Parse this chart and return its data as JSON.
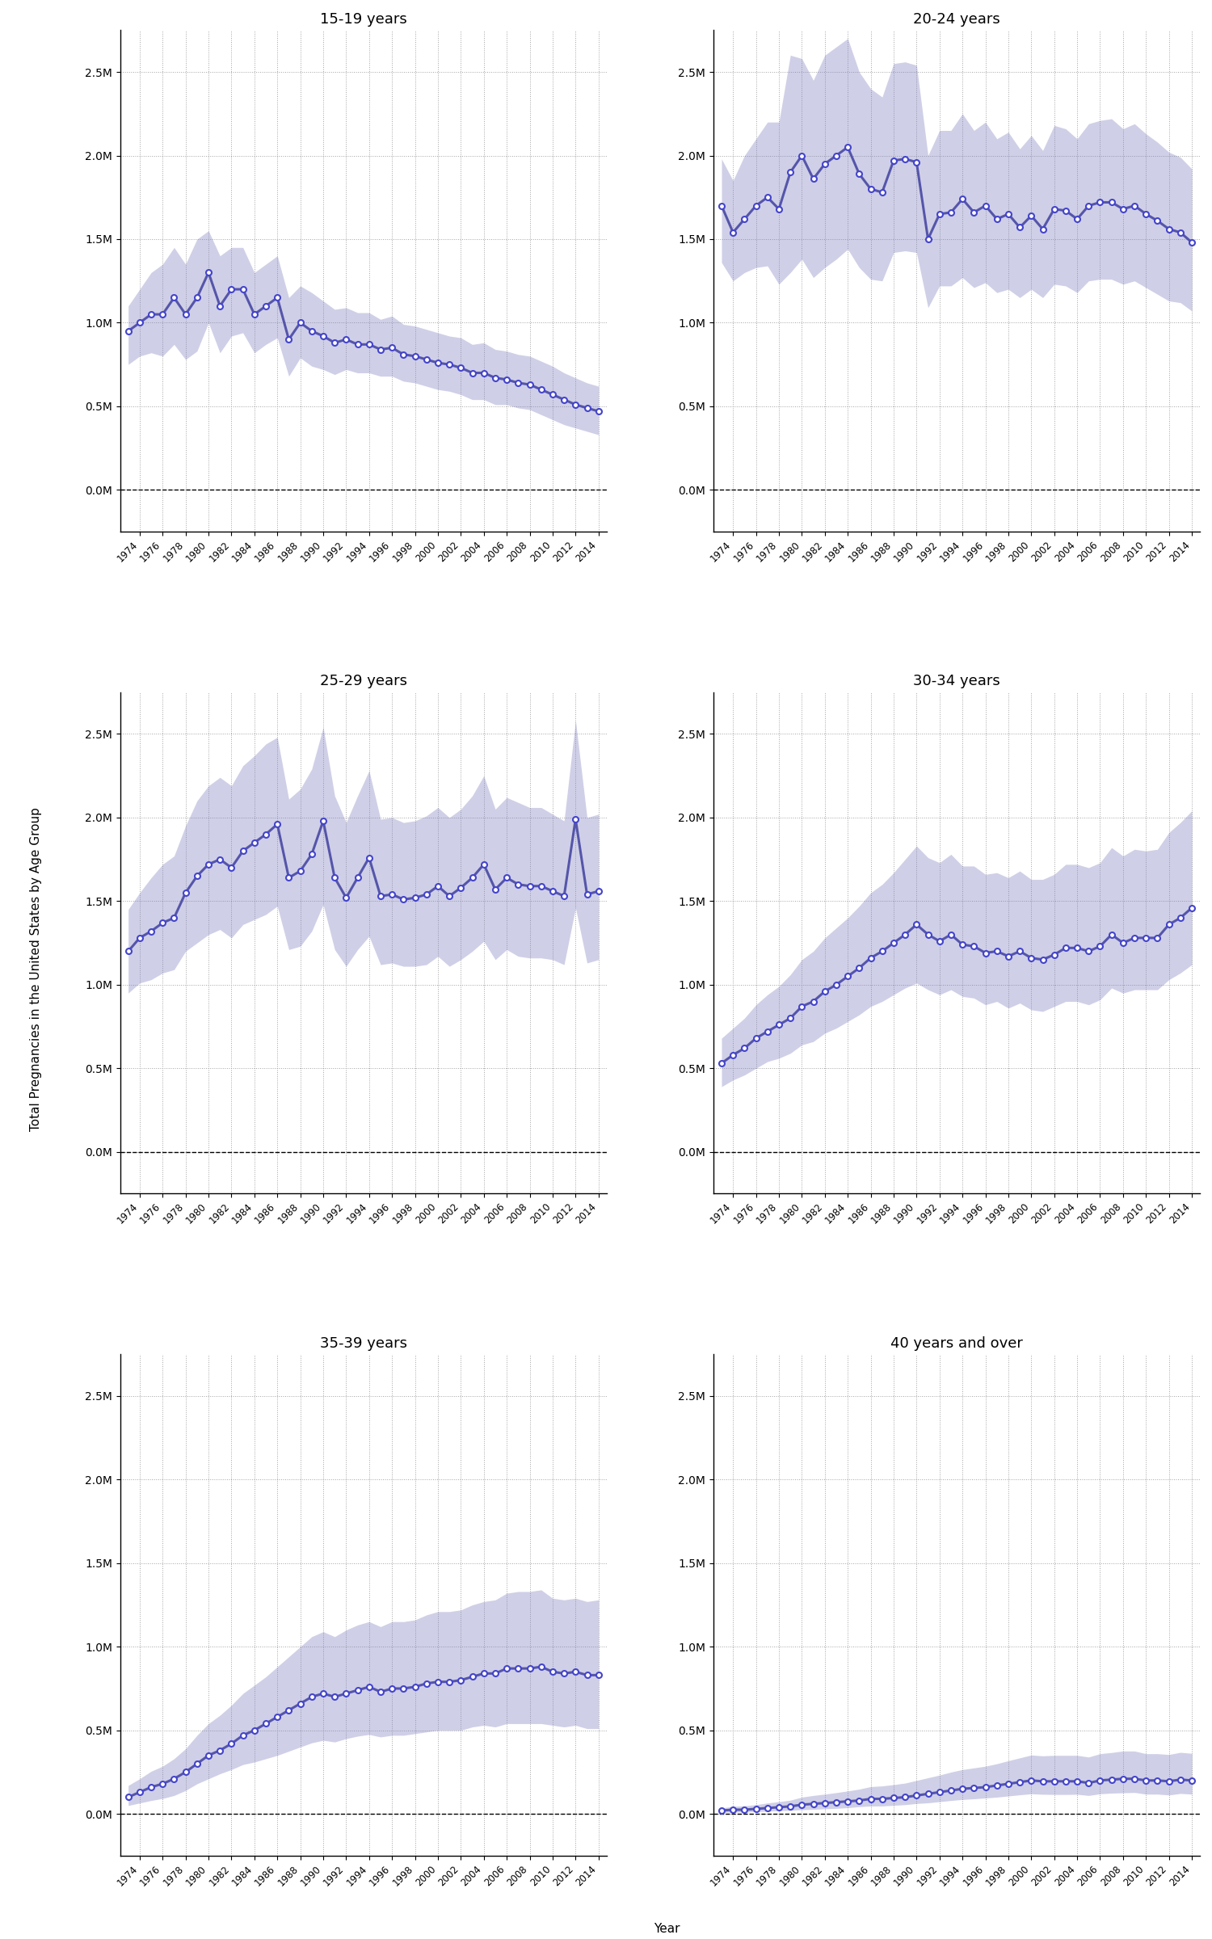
{
  "age_groups": [
    "15-19 years",
    "20-24 years",
    "25-29 years",
    "30-34 years",
    "35-39 years",
    "40 years and over"
  ],
  "years": [
    1973,
    1974,
    1975,
    1976,
    1977,
    1978,
    1979,
    1980,
    1981,
    1982,
    1983,
    1984,
    1985,
    1986,
    1987,
    1988,
    1989,
    1990,
    1991,
    1992,
    1993,
    1994,
    1995,
    1996,
    1997,
    1998,
    1999,
    2000,
    2001,
    2002,
    2003,
    2004,
    2005,
    2006,
    2007,
    2008,
    2009,
    2010,
    2011,
    2012,
    2013,
    2014
  ],
  "estimates": {
    "15-19 years": [
      950000,
      1000000,
      1050000,
      1050000,
      1150000,
      1050000,
      1150000,
      1300000,
      1100000,
      1200000,
      1200000,
      1050000,
      1100000,
      1150000,
      900000,
      1000000,
      950000,
      920000,
      880000,
      900000,
      870000,
      870000,
      840000,
      850000,
      810000,
      800000,
      780000,
      760000,
      750000,
      730000,
      700000,
      700000,
      670000,
      660000,
      640000,
      630000,
      600000,
      570000,
      540000,
      510000,
      490000,
      470000
    ],
    "20-24 years": [
      1700000,
      1540000,
      1620000,
      1700000,
      1750000,
      1680000,
      1900000,
      2000000,
      1860000,
      1950000,
      2000000,
      2050000,
      1890000,
      1800000,
      1780000,
      1970000,
      1980000,
      1960000,
      1500000,
      1650000,
      1660000,
      1740000,
      1660000,
      1700000,
      1620000,
      1650000,
      1570000,
      1640000,
      1560000,
      1680000,
      1670000,
      1620000,
      1700000,
      1720000,
      1720000,
      1680000,
      1700000,
      1650000,
      1610000,
      1560000,
      1540000,
      1480000
    ],
    "25-29 years": [
      1200000,
      1280000,
      1320000,
      1370000,
      1400000,
      1550000,
      1650000,
      1720000,
      1750000,
      1700000,
      1800000,
      1850000,
      1900000,
      1960000,
      1640000,
      1680000,
      1780000,
      1980000,
      1640000,
      1520000,
      1640000,
      1760000,
      1530000,
      1540000,
      1510000,
      1520000,
      1540000,
      1590000,
      1530000,
      1580000,
      1640000,
      1720000,
      1570000,
      1640000,
      1600000,
      1590000,
      1590000,
      1560000,
      1530000,
      1990000,
      1540000,
      1560000
    ],
    "30-34 years": [
      530000,
      580000,
      620000,
      680000,
      720000,
      760000,
      800000,
      870000,
      900000,
      960000,
      1000000,
      1050000,
      1100000,
      1160000,
      1200000,
      1250000,
      1300000,
      1360000,
      1300000,
      1260000,
      1300000,
      1240000,
      1230000,
      1190000,
      1200000,
      1170000,
      1200000,
      1160000,
      1150000,
      1180000,
      1220000,
      1220000,
      1200000,
      1230000,
      1300000,
      1250000,
      1280000,
      1280000,
      1280000,
      1360000,
      1400000,
      1460000
    ],
    "35-39 years": [
      100000,
      130000,
      160000,
      180000,
      210000,
      250000,
      300000,
      350000,
      380000,
      420000,
      470000,
      500000,
      540000,
      580000,
      620000,
      660000,
      700000,
      720000,
      700000,
      720000,
      740000,
      760000,
      730000,
      750000,
      750000,
      760000,
      780000,
      790000,
      790000,
      800000,
      820000,
      840000,
      840000,
      870000,
      870000,
      870000,
      880000,
      850000,
      840000,
      850000,
      830000,
      830000
    ],
    "40 years and over": [
      20000,
      25000,
      25000,
      30000,
      35000,
      40000,
      45000,
      55000,
      60000,
      65000,
      70000,
      75000,
      80000,
      90000,
      90000,
      95000,
      100000,
      110000,
      120000,
      130000,
      140000,
      150000,
      155000,
      160000,
      170000,
      180000,
      190000,
      200000,
      195000,
      195000,
      195000,
      195000,
      185000,
      200000,
      205000,
      210000,
      210000,
      200000,
      200000,
      195000,
      205000,
      200000
    ]
  },
  "ci_upper": {
    "15-19 years": [
      1100000,
      1200000,
      1300000,
      1350000,
      1450000,
      1350000,
      1500000,
      1550000,
      1400000,
      1450000,
      1450000,
      1300000,
      1350000,
      1400000,
      1150000,
      1220000,
      1180000,
      1130000,
      1080000,
      1090000,
      1060000,
      1060000,
      1020000,
      1040000,
      990000,
      980000,
      960000,
      940000,
      920000,
      910000,
      870000,
      880000,
      840000,
      830000,
      810000,
      800000,
      770000,
      740000,
      700000,
      670000,
      640000,
      620000
    ],
    "20-24 years": [
      1980000,
      1850000,
      2000000,
      2100000,
      2200000,
      2200000,
      2600000,
      2580000,
      2450000,
      2600000,
      2650000,
      2700000,
      2500000,
      2400000,
      2350000,
      2550000,
      2560000,
      2540000,
      2000000,
      2150000,
      2150000,
      2250000,
      2150000,
      2200000,
      2100000,
      2140000,
      2040000,
      2120000,
      2030000,
      2180000,
      2160000,
      2100000,
      2190000,
      2210000,
      2220000,
      2160000,
      2190000,
      2130000,
      2080000,
      2020000,
      1990000,
      1920000
    ],
    "25-29 years": [
      1450000,
      1550000,
      1640000,
      1720000,
      1770000,
      1950000,
      2100000,
      2190000,
      2240000,
      2190000,
      2310000,
      2370000,
      2440000,
      2480000,
      2110000,
      2170000,
      2290000,
      2540000,
      2130000,
      1970000,
      2130000,
      2280000,
      1990000,
      2000000,
      1970000,
      1980000,
      2010000,
      2060000,
      2000000,
      2050000,
      2130000,
      2250000,
      2050000,
      2120000,
      2090000,
      2060000,
      2060000,
      2020000,
      1980000,
      2580000,
      2000000,
      2020000
    ],
    "30-34 years": [
      680000,
      740000,
      800000,
      880000,
      940000,
      990000,
      1060000,
      1150000,
      1200000,
      1280000,
      1340000,
      1400000,
      1470000,
      1550000,
      1600000,
      1670000,
      1750000,
      1830000,
      1760000,
      1730000,
      1780000,
      1710000,
      1710000,
      1660000,
      1670000,
      1640000,
      1680000,
      1630000,
      1630000,
      1660000,
      1720000,
      1720000,
      1700000,
      1730000,
      1820000,
      1770000,
      1810000,
      1800000,
      1810000,
      1910000,
      1970000,
      2040000
    ],
    "35-39 years": [
      170000,
      210000,
      255000,
      285000,
      330000,
      390000,
      470000,
      540000,
      590000,
      650000,
      720000,
      770000,
      820000,
      880000,
      940000,
      1000000,
      1060000,
      1090000,
      1060000,
      1100000,
      1130000,
      1150000,
      1120000,
      1150000,
      1150000,
      1160000,
      1190000,
      1210000,
      1210000,
      1220000,
      1250000,
      1270000,
      1280000,
      1320000,
      1330000,
      1330000,
      1340000,
      1290000,
      1280000,
      1290000,
      1270000,
      1280000
    ],
    "40 years and over": [
      35000,
      45000,
      48000,
      55000,
      65000,
      73000,
      82000,
      100000,
      110000,
      118000,
      127000,
      137000,
      148000,
      163000,
      167000,
      175000,
      184000,
      200000,
      216000,
      232000,
      250000,
      265000,
      275000,
      285000,
      300000,
      318000,
      335000,
      352000,
      347000,
      350000,
      350000,
      350000,
      340000,
      360000,
      367000,
      376000,
      376000,
      360000,
      360000,
      355000,
      368000,
      362000
    ]
  },
  "ci_lower": {
    "15-19 years": [
      750000,
      800000,
      820000,
      800000,
      870000,
      780000,
      830000,
      1000000,
      820000,
      920000,
      940000,
      820000,
      870000,
      910000,
      680000,
      790000,
      740000,
      720000,
      690000,
      720000,
      700000,
      700000,
      680000,
      680000,
      650000,
      640000,
      620000,
      600000,
      590000,
      570000,
      540000,
      540000,
      510000,
      510000,
      490000,
      480000,
      450000,
      420000,
      390000,
      370000,
      350000,
      330000
    ],
    "20-24 years": [
      1360000,
      1250000,
      1300000,
      1330000,
      1340000,
      1230000,
      1300000,
      1380000,
      1270000,
      1330000,
      1380000,
      1440000,
      1330000,
      1260000,
      1250000,
      1420000,
      1430000,
      1420000,
      1090000,
      1220000,
      1220000,
      1270000,
      1210000,
      1240000,
      1180000,
      1200000,
      1150000,
      1200000,
      1150000,
      1230000,
      1220000,
      1180000,
      1250000,
      1260000,
      1260000,
      1230000,
      1250000,
      1210000,
      1170000,
      1130000,
      1120000,
      1070000
    ],
    "25-29 years": [
      950000,
      1010000,
      1030000,
      1070000,
      1090000,
      1200000,
      1250000,
      1300000,
      1330000,
      1280000,
      1360000,
      1390000,
      1420000,
      1470000,
      1210000,
      1230000,
      1320000,
      1480000,
      1210000,
      1110000,
      1210000,
      1290000,
      1120000,
      1130000,
      1110000,
      1110000,
      1120000,
      1170000,
      1110000,
      1150000,
      1200000,
      1260000,
      1150000,
      1210000,
      1170000,
      1160000,
      1160000,
      1150000,
      1120000,
      1460000,
      1130000,
      1150000
    ],
    "30-34 years": [
      390000,
      430000,
      460000,
      500000,
      540000,
      560000,
      590000,
      640000,
      660000,
      710000,
      740000,
      780000,
      820000,
      870000,
      900000,
      940000,
      980000,
      1010000,
      970000,
      940000,
      970000,
      930000,
      920000,
      880000,
      900000,
      860000,
      890000,
      850000,
      840000,
      870000,
      900000,
      900000,
      880000,
      910000,
      980000,
      950000,
      970000,
      970000,
      970000,
      1030000,
      1070000,
      1120000
    ],
    "35-39 years": [
      50000,
      65000,
      80000,
      92000,
      110000,
      140000,
      180000,
      210000,
      240000,
      265000,
      295000,
      310000,
      330000,
      350000,
      375000,
      400000,
      425000,
      440000,
      430000,
      450000,
      465000,
      475000,
      460000,
      470000,
      470000,
      480000,
      490000,
      500000,
      500000,
      500000,
      520000,
      530000,
      520000,
      540000,
      540000,
      540000,
      540000,
      530000,
      520000,
      530000,
      510000,
      510000
    ],
    "40 years and over": [
      8000,
      10000,
      11000,
      13000,
      16000,
      19000,
      21000,
      25000,
      27000,
      30000,
      33000,
      37000,
      43000,
      47000,
      47000,
      51000,
      55000,
      62000,
      66000,
      73000,
      80000,
      86000,
      90000,
      95000,
      100000,
      107000,
      114000,
      120000,
      117000,
      116000,
      116000,
      117000,
      110000,
      120000,
      124000,
      126000,
      128000,
      118000,
      118000,
      113000,
      122000,
      118000
    ]
  },
  "line_color": "#5555aa",
  "fill_color": "#7777bb",
  "fill_alpha": 0.35,
  "dot_facecolor": "white",
  "dot_edgecolor": "#4444cc",
  "dot_size": 25,
  "dot_linewidth": 1.5,
  "background_color": "#ffffff",
  "grid_color": "#999999",
  "ylabel": "Total Pregnancies in the United States by Age Group",
  "xlabel": "Year",
  "ylim": [
    -250000,
    2750000
  ],
  "yticks": [
    0,
    500000,
    1000000,
    1500000,
    2000000,
    2500000
  ],
  "ytick_labels": [
    "0.0M",
    "0.5M",
    "1.0M",
    "1.5M",
    "2.0M",
    "2.5M"
  ]
}
